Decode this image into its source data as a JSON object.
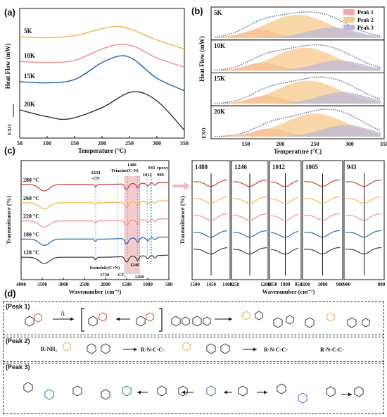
{
  "panel_labels": [
    "(a)",
    "(b)",
    "(c)",
    "(d)"
  ],
  "chart_data": [
    {
      "type": "line",
      "panel": "(a)",
      "xlabel": "Temperature (°C)",
      "ylabel": "Heat Flow (mW)",
      "exo_label": "EXO",
      "xlim": [
        50,
        350
      ],
      "xticks": [
        50,
        100,
        150,
        200,
        250,
        300,
        350
      ],
      "grid": false,
      "series": [
        {
          "name": "5K",
          "color": "#f2b44a",
          "x": [
            50,
            100,
            150,
            200,
            225,
            250,
            300,
            350
          ],
          "y": [
            0.85,
            0.84,
            0.86,
            0.92,
            0.94,
            0.92,
            0.82,
            0.74
          ]
        },
        {
          "name": "10K",
          "color": "#ef8a8a",
          "x": [
            50,
            100,
            150,
            200,
            230,
            260,
            300,
            350
          ],
          "y": [
            0.63,
            0.62,
            0.64,
            0.74,
            0.78,
            0.76,
            0.66,
            0.58
          ]
        },
        {
          "name": "15K",
          "color": "#1f5fa8",
          "x": [
            50,
            100,
            150,
            200,
            235,
            260,
            300,
            350
          ],
          "y": [
            0.45,
            0.44,
            0.47,
            0.62,
            0.68,
            0.64,
            0.48,
            0.37
          ]
        },
        {
          "name": "20K",
          "color": "#333333",
          "x": [
            50,
            100,
            140,
            200,
            255,
            300,
            350
          ],
          "y": [
            0.2,
            0.14,
            0.12,
            0.22,
            0.36,
            0.28,
            0.02
          ]
        }
      ]
    },
    {
      "type": "area",
      "panel": "(b)",
      "xlabel": "Temperature (°C)",
      "ylabel": "Heat Flow (mW)",
      "exo_label": "EXO",
      "xlim": [
        100,
        350
      ],
      "xticks": [
        150,
        200,
        250,
        300,
        350
      ],
      "legend": [
        "Peak 1",
        "Peak 2",
        "Peak 3"
      ],
      "legend_position": "top-right",
      "peak_colors": [
        "#f4a6a6",
        "#f7c98b",
        "#b9b9d6"
      ],
      "subplots": [
        {
          "name": "5K",
          "peaks": [
            {
              "center": 170,
              "height": 0.35,
              "width": 25
            },
            {
              "center": 225,
              "height": 1.0,
              "width": 45
            },
            {
              "center": 275,
              "height": 0.45,
              "width": 35
            }
          ]
        },
        {
          "name": "10K",
          "peaks": [
            {
              "center": 175,
              "height": 0.35,
              "width": 25
            },
            {
              "center": 235,
              "height": 1.0,
              "width": 45
            },
            {
              "center": 285,
              "height": 0.45,
              "width": 35
            }
          ]
        },
        {
          "name": "15K",
          "peaks": [
            {
              "center": 180,
              "height": 0.35,
              "width": 25
            },
            {
              "center": 240,
              "height": 1.0,
              "width": 45
            },
            {
              "center": 290,
              "height": 0.5,
              "width": 35
            }
          ]
        },
        {
          "name": "20K",
          "peaks": [
            {
              "center": 185,
              "height": 0.35,
              "width": 25
            },
            {
              "center": 250,
              "height": 1.0,
              "width": 45
            },
            {
              "center": 295,
              "height": 0.5,
              "width": 35
            }
          ]
        }
      ]
    },
    {
      "type": "line",
      "panel": "(c)",
      "xlabel": "Wavenumber (cm⁻¹)",
      "ylabel": "Transmittance (%)",
      "xlim": [
        4000,
        500
      ],
      "xticks": [
        4000,
        3500,
        3000,
        2500,
        2000,
        1500,
        1000,
        500
      ],
      "series": [
        {
          "name": "280 °C",
          "color": "#c0392b"
        },
        {
          "name": "260 °C",
          "color": "#f2b44a"
        },
        {
          "name": "220 °C",
          "color": "#ef8a8a"
        },
        {
          "name": "180 °C",
          "color": "#1f5fa8"
        },
        {
          "name": "120 °C",
          "color": "#333333"
        }
      ],
      "dashed_lines": [
        2234,
        1720,
        1480,
        1246,
        1200,
        1012,
        943,
        909
      ],
      "annotations": [
        "2234",
        "-CN",
        "1480",
        "Triazine(C-N)",
        "1012",
        "943",
        "epoxy",
        "909",
        "Isoindole(C=N)",
        "1720",
        "-CF3",
        "1200",
        "1246"
      ]
    },
    {
      "type": "line",
      "panel": "(c) zoom",
      "xlabel": "Wavenumber (cm⁻¹)",
      "ylabel": "Transmittance (%)",
      "windows": [
        {
          "label": "1480",
          "xticks": [
            1500,
            1450,
            1400
          ]
        },
        {
          "label": "1246",
          "xticks": [
            1250,
            1200
          ]
        },
        {
          "label": "1012",
          "xticks": [
            1050,
            1000,
            950
          ]
        },
        {
          "label": "1005",
          "xticks": [
            1100,
            1000,
            900
          ]
        },
        {
          "label": "943",
          "xticks": [
            900,
            800
          ]
        }
      ]
    }
  ],
  "scheme": {
    "peak1_label": "(Peak 1)",
    "peak2_label": "(Peak 2)",
    "peak3_label": "(Peak 3)",
    "delta": "Δ",
    "peak2_text": [
      "R-NH₂",
      "R-N-C-C-",
      "R-N-C-C-"
    ]
  }
}
